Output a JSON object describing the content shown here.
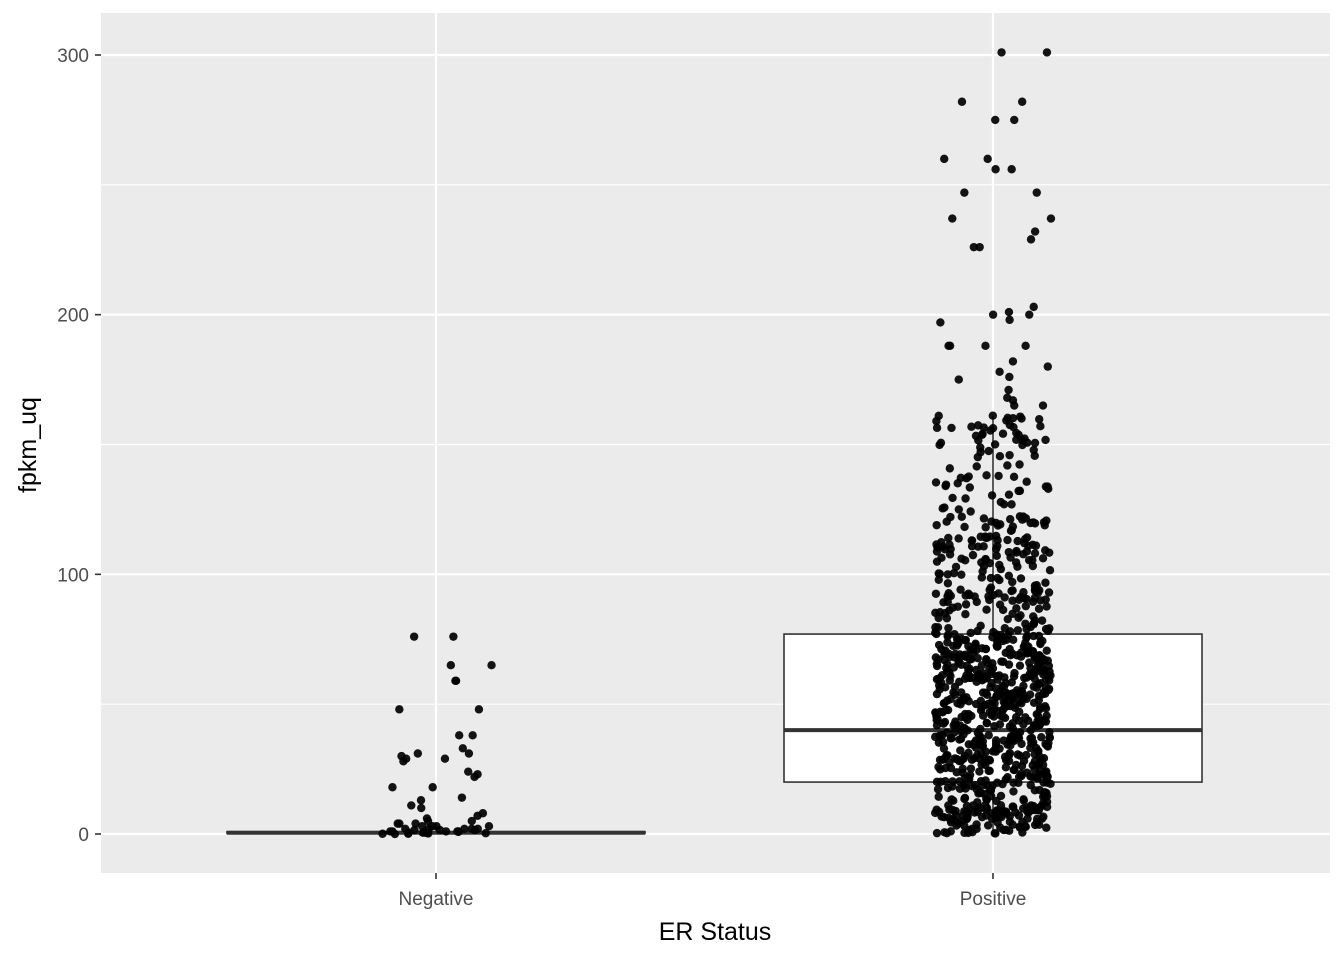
{
  "chart_data": {
    "type": "box",
    "title": "",
    "xlabel": "ER Status",
    "ylabel": "fpkm_uq",
    "categories": [
      "Negative",
      "Positive"
    ],
    "y_ticks": [
      0,
      100,
      200,
      300
    ],
    "ylim": [
      -15,
      316
    ],
    "grid": true,
    "background": "#ebebeb",
    "box_stats": [
      {
        "category": "Negative",
        "q1": 0.2,
        "median": 0.5,
        "q3": 0.9,
        "whisker_low": 0.0,
        "whisker_high": 2.0
      },
      {
        "category": "Positive",
        "q1": 20,
        "median": 40,
        "q3": 77,
        "whisker_low": 0.0,
        "whisker_high": 161
      }
    ],
    "points": {
      "Negative": [
        76,
        76,
        65,
        65,
        59,
        59,
        48,
        48,
        38,
        38,
        33,
        31,
        31,
        30,
        29,
        29,
        28,
        24,
        23,
        22,
        18,
        18,
        14,
        13,
        11,
        10,
        8,
        7,
        6,
        5,
        5,
        4,
        4,
        4,
        3,
        3,
        3,
        3,
        2,
        2,
        2,
        2,
        2,
        1.5,
        1.5,
        1.5,
        1,
        1,
        1,
        1,
        1,
        0.8,
        0.8,
        0.6,
        0.5,
        0.5,
        0.4,
        0.3,
        0.2,
        0.1,
        0.1,
        0
      ],
      "Positive_outliers": [
        301,
        301,
        282,
        282,
        275,
        275,
        260,
        260,
        256,
        256,
        247,
        247,
        237,
        237,
        232,
        229,
        226,
        226,
        203,
        201,
        200,
        200,
        198,
        197,
        188,
        188,
        188,
        188,
        182,
        180,
        178,
        176,
        175,
        171,
        168,
        167,
        165,
        165
      ]
    }
  }
}
